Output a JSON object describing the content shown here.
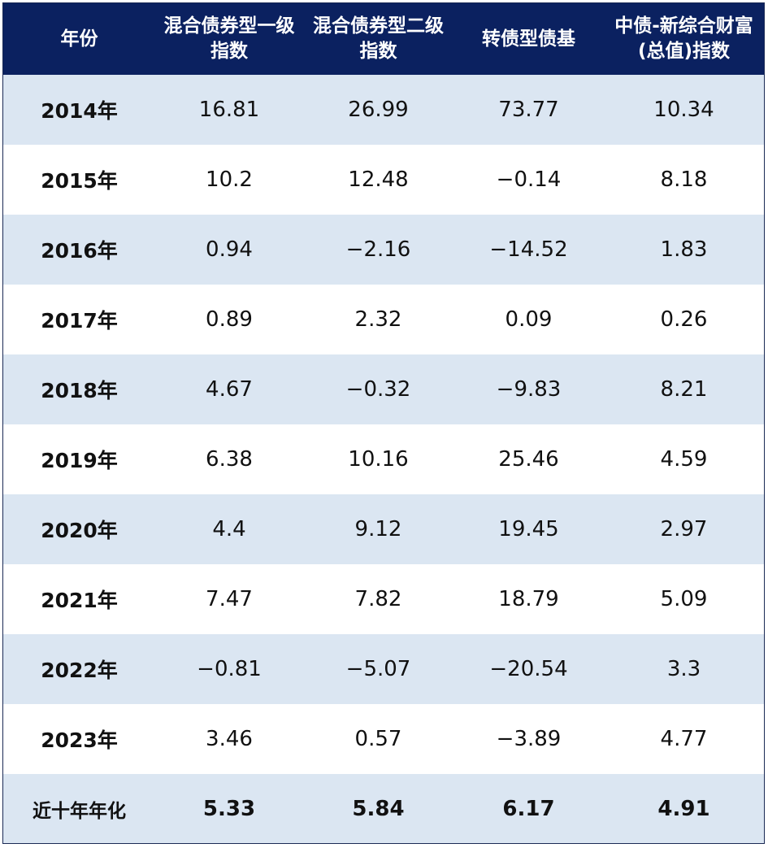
{
  "table": {
    "headers": [
      "年份",
      "混合债券型一级指数",
      "混合债券型二级指数",
      "转债型债基",
      "中债-新综合财富(总值)指数"
    ],
    "rows": [
      {
        "year": "2014年",
        "values": [
          "16.81",
          "26.99",
          "73.77",
          "10.34"
        ]
      },
      {
        "year": "2015年",
        "values": [
          "10.2",
          "12.48",
          "−0.14",
          "8.18"
        ]
      },
      {
        "year": "2016年",
        "values": [
          "0.94",
          "−2.16",
          "−14.52",
          "1.83"
        ]
      },
      {
        "year": "2017年",
        "values": [
          "0.89",
          "2.32",
          "0.09",
          "0.26"
        ]
      },
      {
        "year": "2018年",
        "values": [
          "4.67",
          "−0.32",
          "−9.83",
          "8.21"
        ]
      },
      {
        "year": "2019年",
        "values": [
          "6.38",
          "10.16",
          "25.46",
          "4.59"
        ]
      },
      {
        "year": "2020年",
        "values": [
          "4.4",
          "9.12",
          "19.45",
          "2.97"
        ]
      },
      {
        "year": "2021年",
        "values": [
          "7.47",
          "7.82",
          "18.79",
          "5.09"
        ]
      },
      {
        "year": "2022年",
        "values": [
          "−0.81",
          "−5.07",
          "−20.54",
          "3.3"
        ]
      },
      {
        "year": "2023年",
        "values": [
          "3.46",
          "0.57",
          "−3.89",
          "4.77"
        ]
      }
    ],
    "summary": {
      "label": "近十年年化",
      "values": [
        "5.33",
        "5.84",
        "6.17",
        "4.91"
      ]
    }
  },
  "colors": {
    "header_bg": "#0b2160",
    "header_text": "#ffffff",
    "row_shade": "#dbe6f2",
    "row_plain": "#ffffff"
  }
}
